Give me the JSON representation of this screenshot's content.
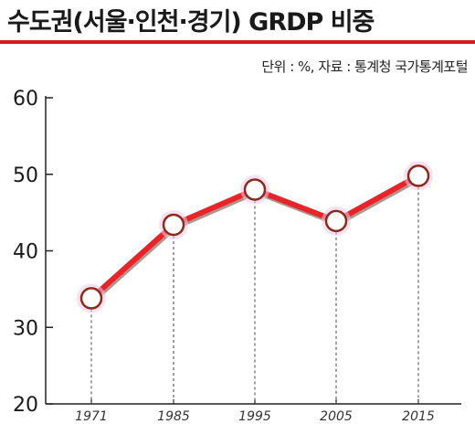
{
  "header": {
    "title": "수도권(서울·인천·경기) GRDP 비중",
    "source": "단위 : %, 자료 : 통계청 국가통계포털"
  },
  "colors": {
    "accent_rule": "#d71920",
    "line": "#e8232a",
    "line_shadow": "#8a6a5a",
    "marker_stroke": "#8a2a1c",
    "marker_fill": "#ffffff",
    "halo": "#f4c8e8"
  },
  "chart_data": {
    "type": "line",
    "title": "수도권(서울·인천·경기) GRDP 비중",
    "categories": [
      "1971",
      "1985",
      "1995",
      "2005",
      "2015"
    ],
    "series": [
      {
        "values": [
          33.8,
          43.4,
          48.0,
          43.9,
          49.8
        ]
      }
    ],
    "xlabel": "",
    "ylabel": "",
    "ylim": [
      20,
      60
    ],
    "yticks": [
      "20",
      "30",
      "40",
      "50",
      "60"
    ],
    "grid": false,
    "drop_lines": true
  }
}
